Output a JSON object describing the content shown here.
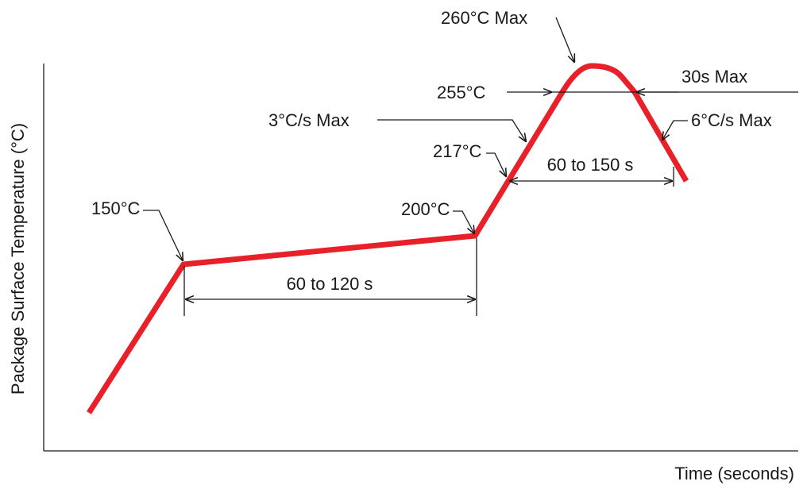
{
  "chart_data": {
    "type": "line",
    "xlabel": "Time (seconds)",
    "ylabel": "Package Surface Temperature (°C)",
    "series": [
      {
        "points": [
          [
            0,
            110
          ],
          [
            12,
            150
          ],
          [
            120,
            200
          ],
          [
            138,
            255
          ],
          [
            148,
            260
          ],
          [
            172,
            260
          ],
          [
            182,
            255
          ],
          [
            195,
            217
          ]
        ]
      }
    ],
    "annotations": {
      "t150": "150°C",
      "t200": "200°C",
      "t217": "217°C",
      "t255": "255°C",
      "t260": "260°C Max",
      "rate_up": "3°C/s Max",
      "rate_down": "6°C/s Max",
      "soak": "60 to 120 s",
      "above_217": "60 to 150 s",
      "peak_time": "30s Max"
    },
    "grid": false,
    "colors": {
      "curve": "#e8202a",
      "ink": "#1a1a1a"
    }
  }
}
